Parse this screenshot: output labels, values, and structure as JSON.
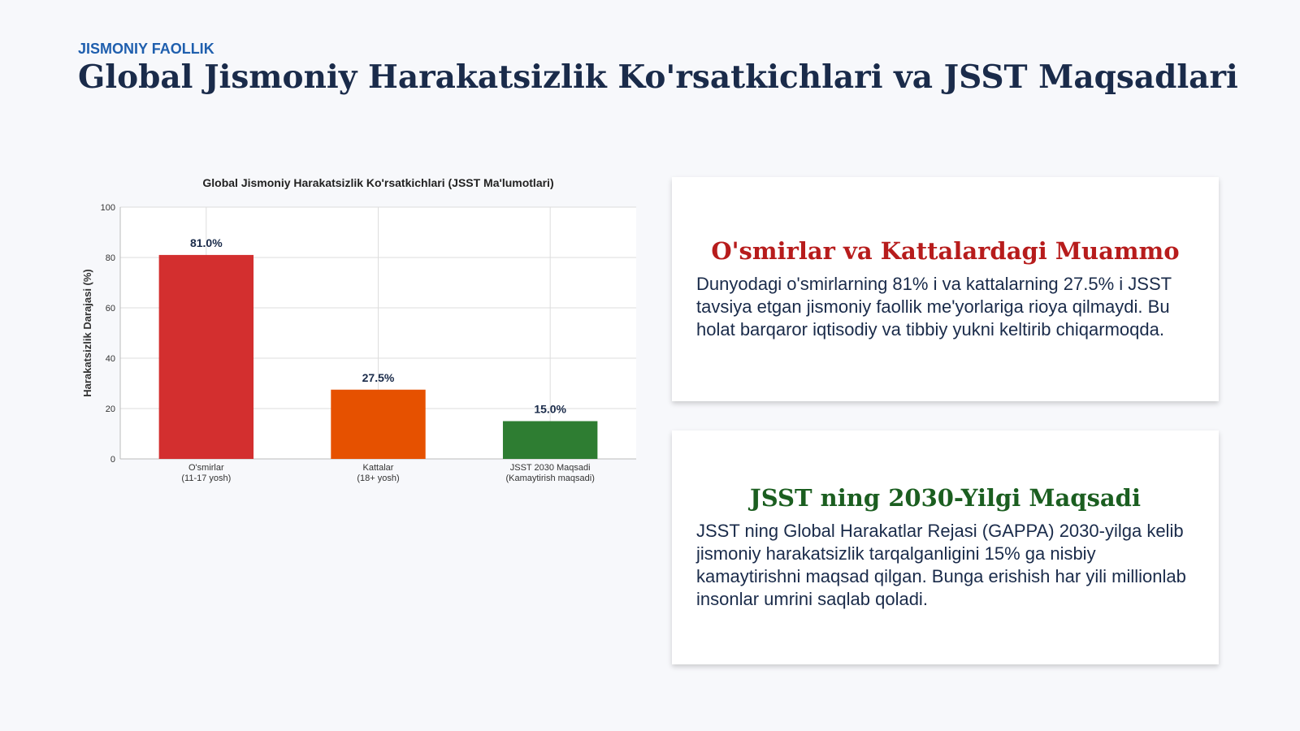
{
  "header": {
    "kicker": "JISMONIY FAOLLIK",
    "title": "Global Jismoniy Harakatsizlik Ko'rsatkichlari va JSST Maqsadlari"
  },
  "chart_data": {
    "type": "bar",
    "title": "Global Jismoniy Harakatsizlik Ko'rsatkichlari (JSST Ma'lumotlari)",
    "y_label": "Harakatsizlik Darajasi (%)",
    "categories": [
      "O'smirlar\n(11-17 yosh)",
      "Kattalar\n(18+ yosh)",
      "JSST 2030 Maqsadi\n(Kamaytirish maqsadi)"
    ],
    "values": [
      81,
      27.5,
      15
    ],
    "value_labels": [
      "81.0%",
      "27.5%",
      "15.0%"
    ],
    "colors": [
      "#d32f2f",
      "#e65100",
      "#2e7d32"
    ],
    "ylim": [
      0,
      100
    ],
    "yticks": [
      0,
      20,
      40,
      60,
      80,
      100
    ],
    "grid": true
  },
  "cards": [
    {
      "title": "O'smirlar va Kattalardagi Muammo",
      "text": "Dunyodagi o'smirlarning 81% i va kattalarning 27.5% i JSST tavsiya etgan jismoniy faollik me'yorlariga rioya qilmaydi. Bu holat barqaror iqtisodiy va tibbiy yukni keltirib chiqarmoqda."
    },
    {
      "title": "JSST ning 2030-Yilgi Maqsadi",
      "text": "JSST ning Global Harakatlar Rejasi (GAPPA) 2030-yilga kelib jismoniy harakatsizlik tarqalganligini 15% ga nisbiy kamaytirishni maqsad qilgan. Bunga erishish har yili millionlab insonlar umrini saqlab qoladi."
    }
  ]
}
